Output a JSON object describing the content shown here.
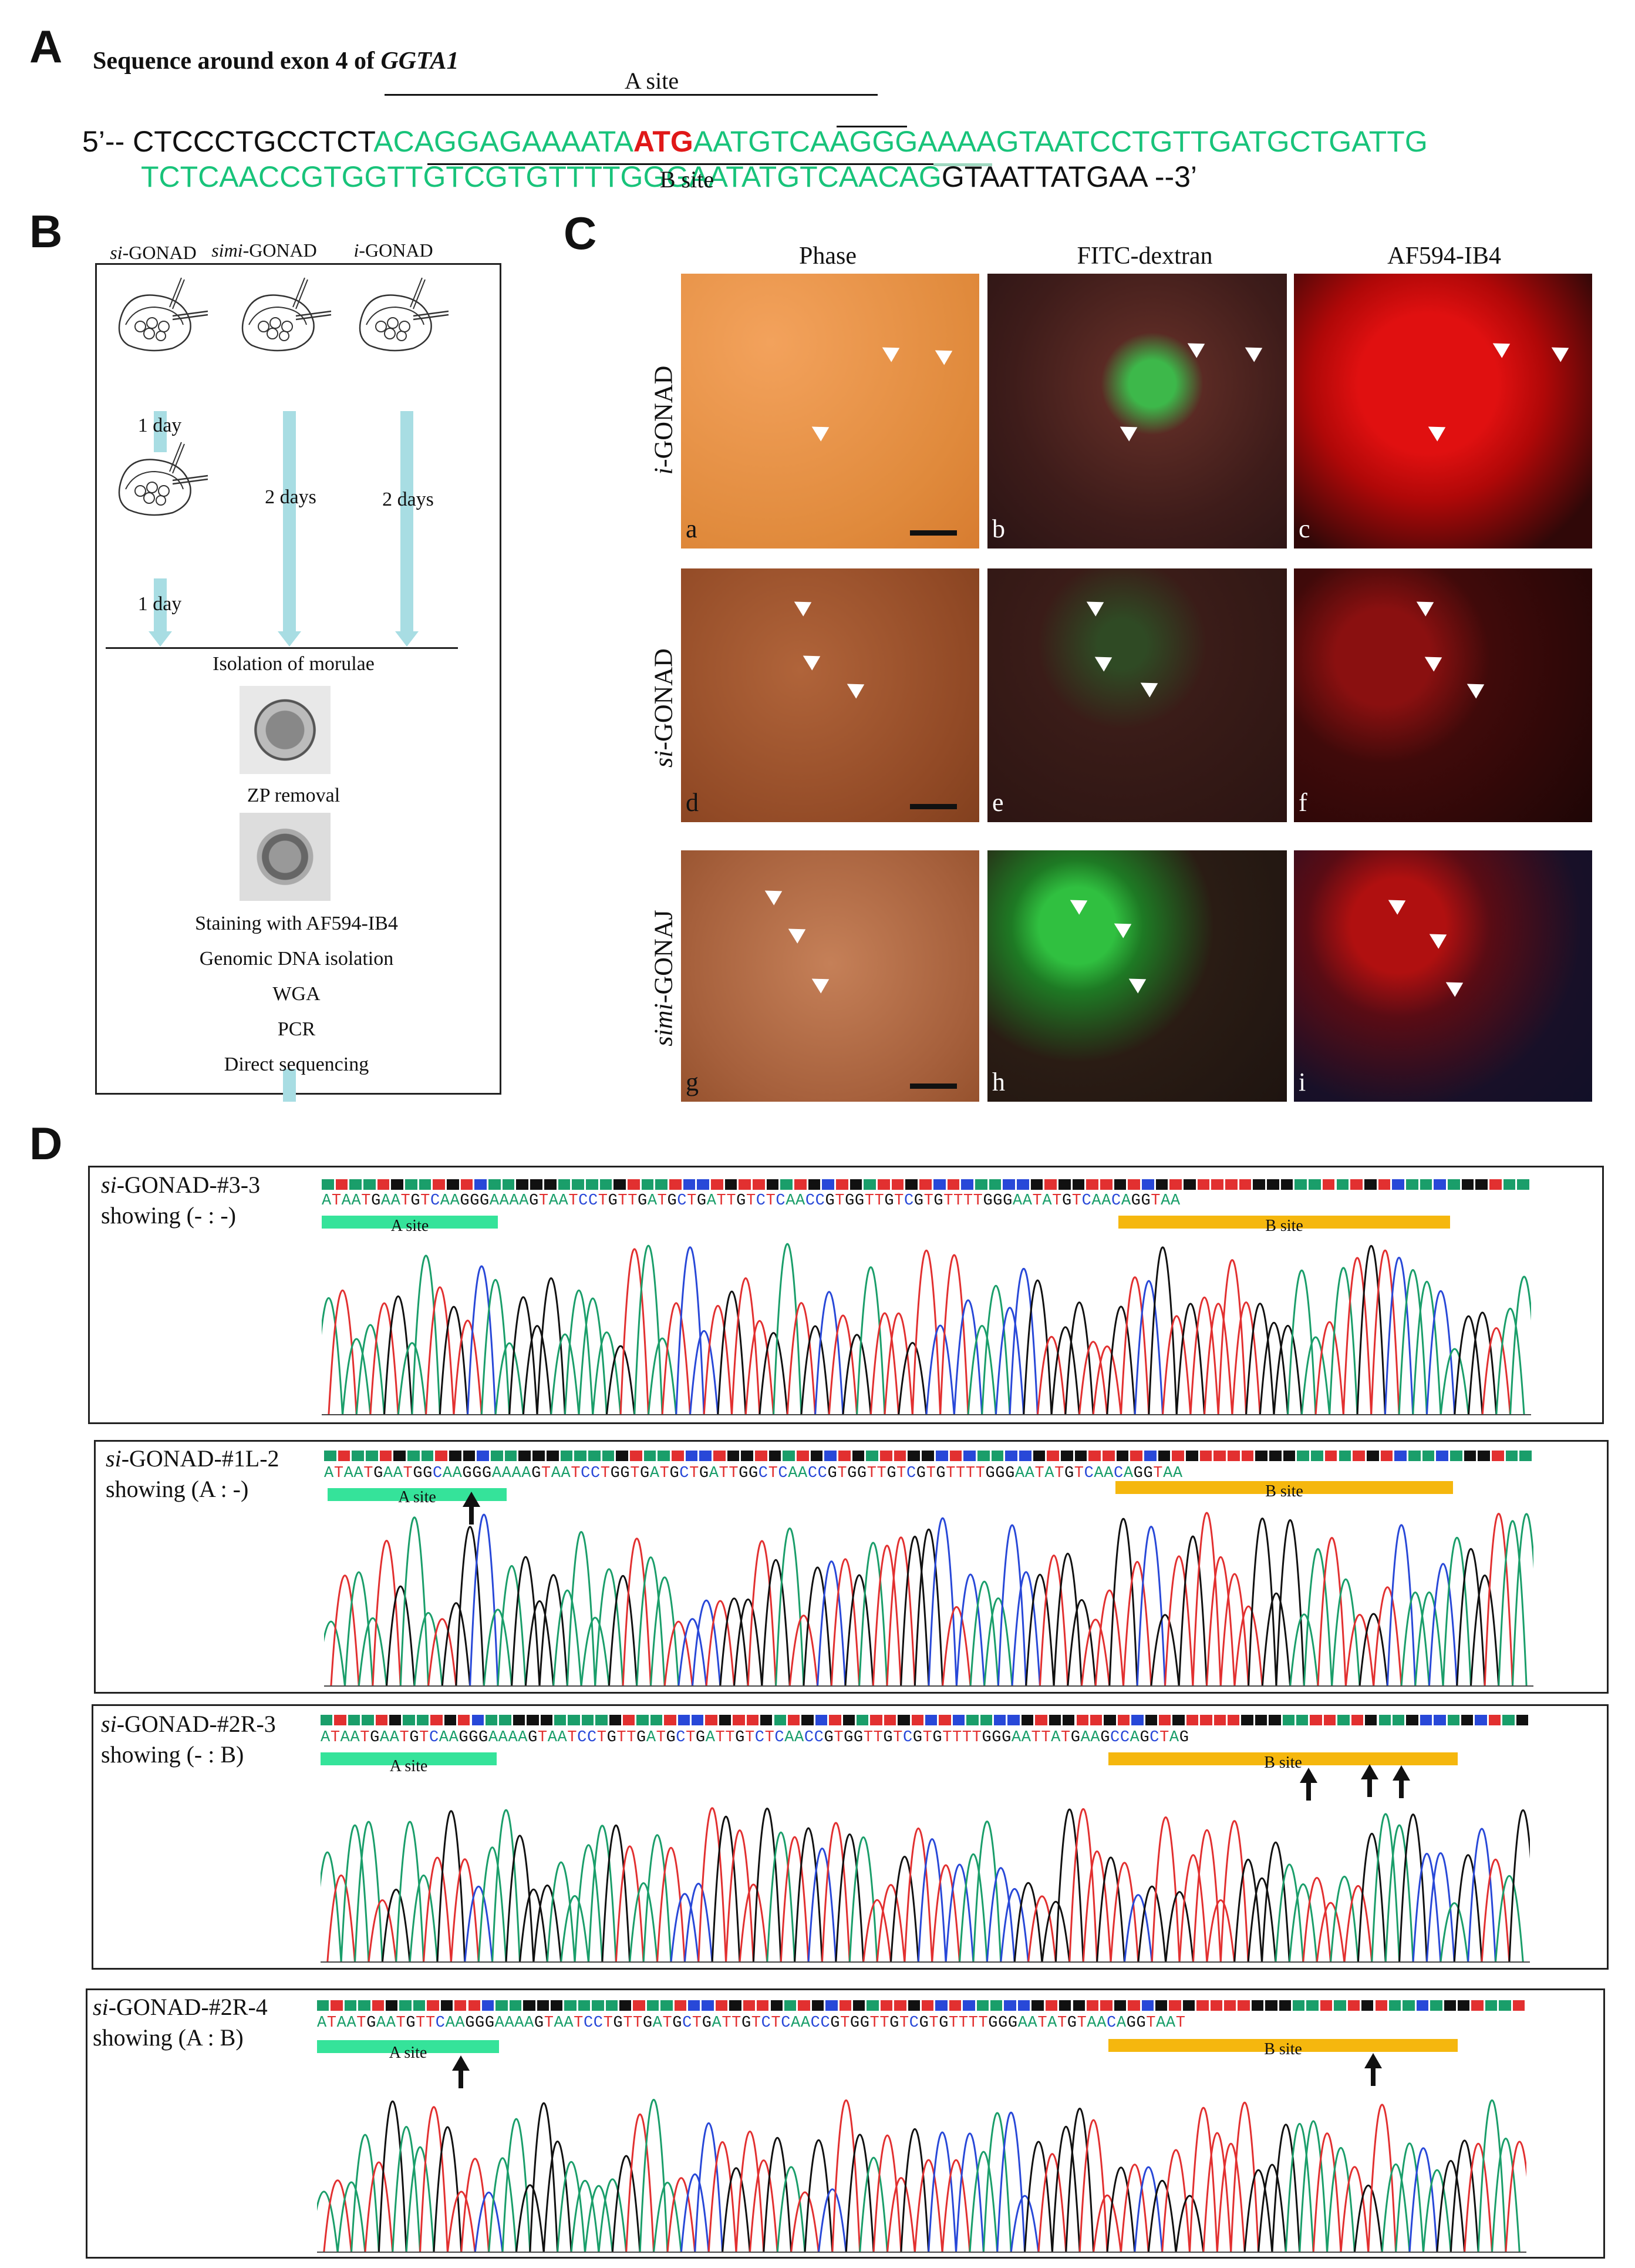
{
  "panel_labels": {
    "a": "A",
    "b": "B",
    "c": "C",
    "d": "D"
  },
  "panelA": {
    "title_prefix": "Sequence around exon 4 of ",
    "title_gene": "GGTA1",
    "a_site_label": "A site",
    "b_site_label": "B site",
    "line1": {
      "prefix": "5’-- CTCCCTGCCTCT",
      "green1": "ACAGGAGAAAATA",
      "atg": "ATG",
      "green2": "AATGTCAAGGGAAAAGTAATCCTGTTGATGCTGATTG"
    },
    "line2": {
      "green": "TCTCAACCGTGGTTGTCGTGTTTTGGGAATATGTCAACAG",
      "suffix": "GTAATTATGAA --3’"
    }
  },
  "panelB": {
    "heads": [
      "si-GONAD",
      "simi-GONAD",
      "i-GONAD"
    ],
    "head_parts": [
      [
        "si",
        "-GONAD"
      ],
      [
        "simi",
        "-GONAD"
      ],
      [
        "i",
        "-GONAD"
      ]
    ],
    "day_labels": [
      "1 day",
      "2 days",
      "2 days",
      "1 day"
    ],
    "steps": [
      "Isolation of morulae",
      "ZP removal",
      "Staining with AF594-IB4",
      "Genomic DNA isolation",
      "WGA",
      "PCR",
      "Direct sequencing"
    ]
  },
  "panelC": {
    "columns": [
      "Phase",
      "FITC-dextran",
      "AF594-IB4"
    ],
    "rows": [
      {
        "label_italic": "i",
        "label_rest": "-GONAD"
      },
      {
        "label_italic": "si",
        "label_rest": "-GONAD"
      },
      {
        "label_italic": "simi",
        "label_rest": "-GONAJ"
      }
    ],
    "letters": [
      "a",
      "b",
      "c",
      "d",
      "e",
      "f",
      "g",
      "h",
      "i"
    ]
  },
  "panelD": {
    "traces": [
      {
        "name_italic": "si",
        "name_rest": "-GONAD-#3-3",
        "showing": "showing (- : -)",
        "seq": "ATAATGAATGTCAAGGGAAAAGTAATCCTGTTGATGCTGATTGTCTCAACCGTGGTTGTCGTGTTTTGGGAATATGTCAACAGGTAA",
        "a_site": "A site",
        "b_site": "B site"
      },
      {
        "name_italic": "si",
        "name_rest": "-GONAD-#1L-2",
        "showing": "showing (A : -)",
        "seq": "ATAATGAATGGCAAGGGAAAAGTAATCCTGGTGATGCTGATTGGCTCAACCGTGGTTGTCGTGTTTTGGGAATATGTCAACAGGTAA",
        "a_site": "A site",
        "b_site": "B site"
      },
      {
        "name_italic": "si",
        "name_rest": "-GONAD-#2R-3",
        "showing": "showing (- : B)",
        "seq": "ATAATGAATGTCAAGGGAAAAGTAATCCTGTTGATGCTGATTGTCTCAACCGTGGTTGTCGTGTTTTGGGAATTATGAAGCCAGCTAG",
        "a_site": "A site",
        "b_site": "B site"
      },
      {
        "name_italic": "si",
        "name_rest": "-GONAD-#2R-4",
        "showing": "showing (A : B)",
        "seq": "ATAATGAATGTTCAAGGGAAAAGTAATCCTGTTGATGCTGATTGTCTCAACCGTGGTTGTCGTGTTTTGGGAATATGTAACAGGTAAT",
        "a_site": "A site",
        "b_site": "B site"
      }
    ],
    "colors": {
      "A": "#1a9e6a",
      "C": "#2848d8",
      "G": "#111111",
      "T": "#e23030"
    }
  }
}
